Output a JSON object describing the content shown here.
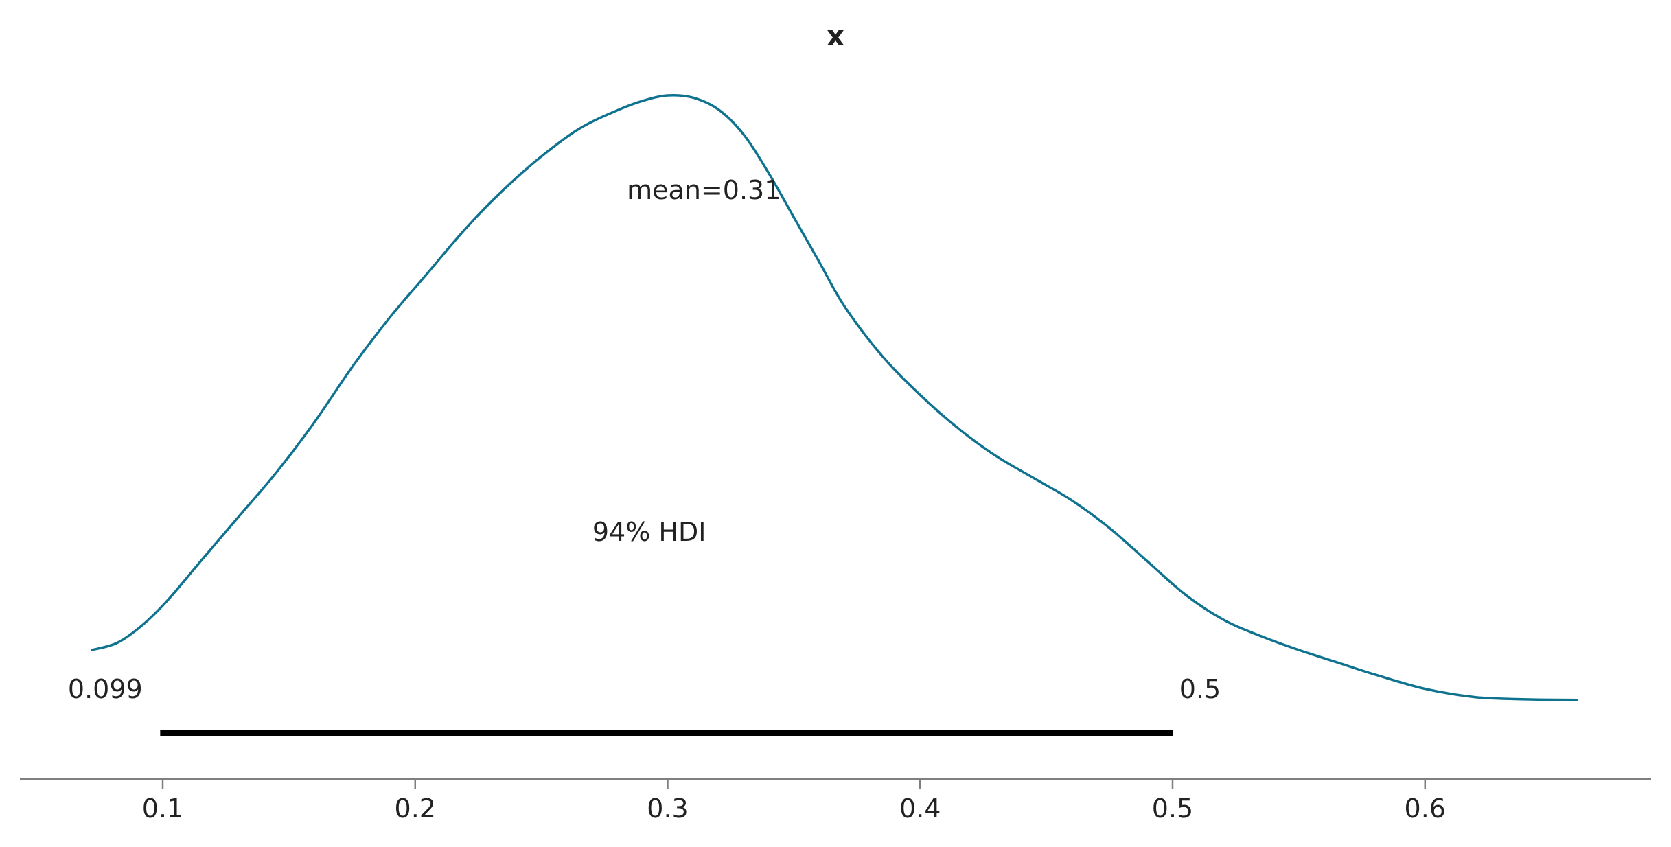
{
  "chart_data": {
    "type": "line",
    "title": "x",
    "xlabel": "",
    "ylabel": "",
    "xlim": [
      0.043,
      0.689
    ],
    "x_ticks": [
      0.1,
      0.2,
      0.3,
      0.4,
      0.5,
      0.6
    ],
    "x_tick_labels": [
      "0.1",
      "0.2",
      "0.3",
      "0.4",
      "0.5",
      "0.6"
    ],
    "y_axis_visible": false,
    "grid": false,
    "series": [
      {
        "color": "#0f7390",
        "x": [
          0.072,
          0.082,
          0.092,
          0.102,
          0.115,
          0.13,
          0.145,
          0.16,
          0.175,
          0.19,
          0.205,
          0.22,
          0.235,
          0.25,
          0.265,
          0.28,
          0.29,
          0.3,
          0.31,
          0.32,
          0.33,
          0.34,
          0.35,
          0.36,
          0.37,
          0.385,
          0.4,
          0.415,
          0.43,
          0.445,
          0.46,
          0.475,
          0.49,
          0.505,
          0.52,
          0.535,
          0.55,
          0.565,
          0.58,
          0.6,
          0.62,
          0.64,
          0.66
        ],
        "y": [
          0.0,
          0.013,
          0.045,
          0.09,
          0.16,
          0.24,
          0.32,
          0.41,
          0.51,
          0.6,
          0.68,
          0.76,
          0.83,
          0.89,
          0.94,
          0.973,
          0.99,
          1.0,
          0.996,
          0.975,
          0.93,
          0.86,
          0.78,
          0.7,
          0.62,
          0.53,
          0.46,
          0.4,
          0.35,
          0.31,
          0.27,
          0.22,
          0.16,
          0.1,
          0.055,
          0.025,
          0.0,
          -0.022,
          -0.044,
          -0.07,
          -0.085,
          -0.089,
          -0.09
        ]
      }
    ],
    "point_estimate": {
      "label": "mean=0.31",
      "value": 0.31
    },
    "hdi": {
      "label": "94% HDI",
      "low": 0.099,
      "high": 0.5,
      "low_label": "0.099",
      "high_label": "0.5",
      "color": "#000000"
    },
    "axis_color": "#7f7f7f"
  }
}
